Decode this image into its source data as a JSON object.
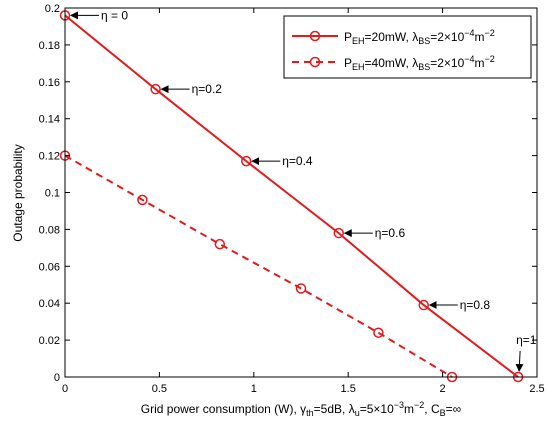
{
  "chart_data": {
    "type": "line",
    "xlabel": "Grid power consumption (W), γ_th=5dB, λ_u=5×10^−3m^−2, C_B=∞",
    "xlabel_parts": {
      "pre": "Grid power consumption (W), γ",
      "sub_th": "th",
      "mid1": "=5dB, λ",
      "sub_u": "u",
      "mid2": "=5×10",
      "sup_exp": "−3",
      "mid3": "m",
      "sup_m": "−2",
      "mid4": ", C",
      "sub_b": "B",
      "post": "=∞"
    },
    "ylabel": "Outage probability",
    "xlim": [
      0,
      2.5
    ],
    "ylim": [
      0,
      0.2
    ],
    "x_ticks": [
      0,
      0.5,
      1,
      1.5,
      2,
      2.5
    ],
    "x_tick_labels": [
      "0",
      "0.5",
      "1",
      "1.5",
      "2",
      "2.5"
    ],
    "y_ticks": [
      0,
      0.02,
      0.04,
      0.06,
      0.08,
      0.1,
      0.12,
      0.14,
      0.16,
      0.18,
      0.2
    ],
    "y_tick_labels": [
      "0",
      "0.02",
      "0.04",
      "0.06",
      "0.08",
      "0.1",
      "0.12",
      "0.14",
      "0.16",
      "0.18",
      "0.2"
    ],
    "grid": false,
    "legend_position": "top-right",
    "series": [
      {
        "legend_parts": {
          "p": "P",
          "p_sub": "EH",
          "mid": "=20mW, λ",
          "l_sub": "BS",
          "val": "=2×10",
          "exp": "−4",
          "unit": "m",
          "unit_exp": "−2"
        },
        "color": "#e41a1c",
        "style": "solid",
        "marker": "circle",
        "x": [
          0,
          0.48,
          0.96,
          1.45,
          1.9,
          2.4
        ],
        "y": [
          0.196,
          0.156,
          0.117,
          0.078,
          0.039,
          0.0
        ]
      },
      {
        "legend_parts": {
          "p": "P",
          "p_sub": "EH",
          "mid": "=40mW, λ",
          "l_sub": "BS",
          "val": "=2×10",
          "exp": "−4",
          "unit": "m",
          "unit_exp": "−2"
        },
        "color": "#e41a1c",
        "style": "dashed",
        "marker": "circle",
        "x": [
          0,
          0.41,
          0.82,
          1.25,
          1.66,
          2.05
        ],
        "y": [
          0.12,
          0.096,
          0.072,
          0.048,
          0.024,
          0.0
        ]
      }
    ],
    "annotations": [
      {
        "text": "η = 0",
        "x": 0,
        "y": 0.196,
        "dir": "right"
      },
      {
        "text": "η=0.2",
        "x": 0.48,
        "y": 0.156,
        "dir": "right"
      },
      {
        "text": "η=0.4",
        "x": 0.96,
        "y": 0.117,
        "dir": "right"
      },
      {
        "text": "η=0.6",
        "x": 1.45,
        "y": 0.078,
        "dir": "right"
      },
      {
        "text": "η=0.8",
        "x": 1.9,
        "y": 0.039,
        "dir": "right"
      },
      {
        "text": "η=1",
        "x": 2.4,
        "y": 0.0,
        "dir": "down"
      }
    ]
  }
}
